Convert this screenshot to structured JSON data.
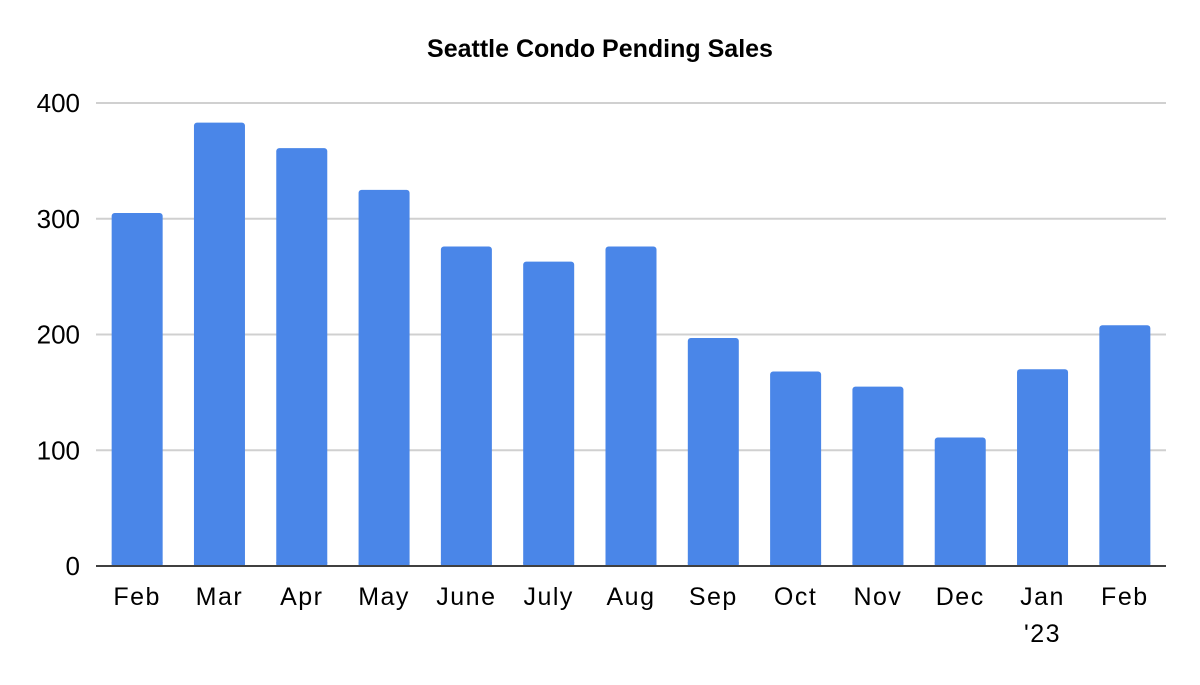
{
  "chart_data": {
    "type": "bar",
    "title": "Seattle Condo Pending Sales",
    "xlabel": "",
    "ylabel": "",
    "categories": [
      [
        "Feb"
      ],
      [
        "Mar"
      ],
      [
        "Apr"
      ],
      [
        "May"
      ],
      [
        "June"
      ],
      [
        "July"
      ],
      [
        "Aug"
      ],
      [
        "Sep"
      ],
      [
        "Oct"
      ],
      [
        "Nov"
      ],
      [
        "Dec"
      ],
      [
        "Jan",
        "'23"
      ],
      [
        "Feb"
      ]
    ],
    "values": [
      305,
      383,
      361,
      325,
      276,
      263,
      276,
      197,
      168,
      155,
      111,
      170,
      208
    ],
    "ylim": [
      0,
      400
    ],
    "yticks": [
      "0",
      "100",
      "200",
      "300",
      "400"
    ],
    "grid": true,
    "legend": "none",
    "colors": {
      "bar": "#4A86E8",
      "grid": "#D0D0D0",
      "axis": "#404040"
    }
  }
}
